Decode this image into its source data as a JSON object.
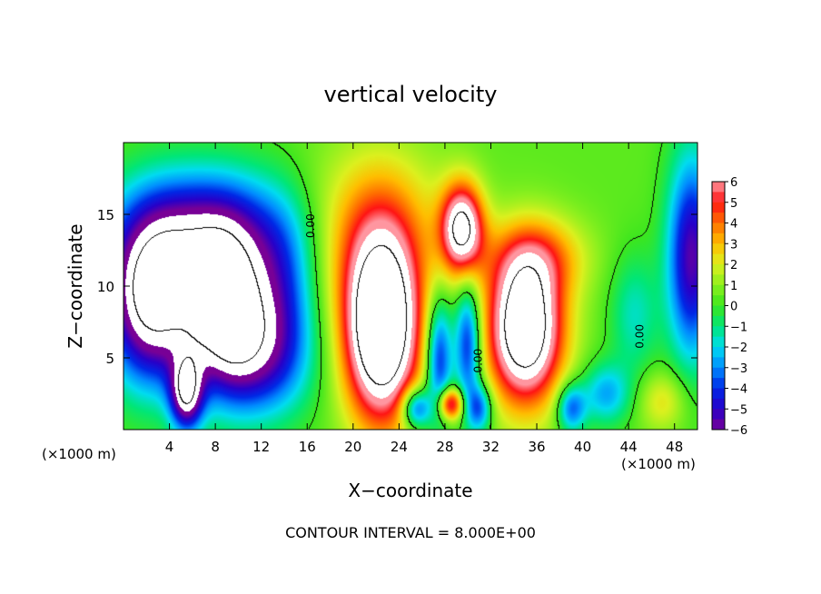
{
  "chart_data": {
    "type": "heatmap",
    "title": "vertical velocity",
    "xlabel": "X−coordinate",
    "ylabel": "Z−coordinate",
    "x_unit_left": "(×1000 m)",
    "x_unit_right": "(×1000 m)",
    "footer": "CONTOUR INTERVAL = 8.000E+00",
    "xlim": [
      0,
      50
    ],
    "ylim": [
      0,
      20
    ],
    "xticks": [
      4,
      8,
      12,
      16,
      20,
      24,
      28,
      32,
      36,
      40,
      44,
      48
    ],
    "yticks": [
      5,
      10,
      15
    ],
    "colorbar": {
      "range": [
        -6,
        6
      ],
      "ticks": [
        "6",
        "5",
        "4",
        "3",
        "2",
        "1",
        "0",
        "−1",
        "−2",
        "−3",
        "−4",
        "−5",
        "−6"
      ],
      "values": [
        6,
        5,
        4,
        3,
        2,
        1,
        0,
        -1,
        -2,
        -3,
        -4,
        -5,
        -6
      ]
    },
    "contour_labels": [
      {
        "text": "0.00",
        "x": 16.6,
        "z": 14.2
      },
      {
        "text": "0.00",
        "x": 31.2,
        "z": 4.8
      },
      {
        "text": "0.00",
        "x": 45.3,
        "z": 6.5
      }
    ],
    "features": [
      {
        "x": 2.5,
        "z": 9.0,
        "sx": 2.8,
        "sz": 4.0,
        "amp": -9
      },
      {
        "x": 9.0,
        "z": 8.5,
        "sx": 2.5,
        "sz": 3.8,
        "amp": -9
      },
      {
        "x": 7.0,
        "z": 14.0,
        "sx": 5.0,
        "sz": 3.0,
        "amp": -5
      },
      {
        "x": 5.5,
        "z": 2.5,
        "sx": 1.0,
        "sz": 1.8,
        "amp": -7
      },
      {
        "x": 12.0,
        "z": 5.0,
        "sx": 3.0,
        "sz": 3.0,
        "amp": -4
      },
      {
        "x": 14.0,
        "z": 10.0,
        "sx": 2.0,
        "sz": 4.0,
        "amp": -3
      },
      {
        "x": 22.5,
        "z": 7.0,
        "sx": 2.3,
        "sz": 4.5,
        "amp": 11
      },
      {
        "x": 29.5,
        "z": 14.0,
        "sx": 1.3,
        "sz": 2.2,
        "amp": 8
      },
      {
        "x": 35.0,
        "z": 7.0,
        "sx": 2.3,
        "sz": 3.6,
        "amp": 10
      },
      {
        "x": 27.5,
        "z": 5.0,
        "sx": 0.8,
        "sz": 3.0,
        "amp": -5
      },
      {
        "x": 30.0,
        "z": 6.0,
        "sx": 0.8,
        "sz": 3.0,
        "amp": -5
      },
      {
        "x": 25.5,
        "z": 1.5,
        "sx": 0.9,
        "sz": 1.0,
        "amp": -5
      },
      {
        "x": 31.0,
        "z": 1.5,
        "sx": 0.8,
        "sz": 1.2,
        "amp": -4
      },
      {
        "x": 39.0,
        "z": 1.5,
        "sx": 0.9,
        "sz": 1.2,
        "amp": -4
      },
      {
        "x": 28.5,
        "z": 1.8,
        "sx": 0.8,
        "sz": 0.8,
        "amp": 6
      },
      {
        "x": 42.0,
        "z": 2.5,
        "sx": 1.5,
        "sz": 1.5,
        "amp": -3
      },
      {
        "x": 44.5,
        "z": 8.0,
        "sx": 1.5,
        "sz": 3.0,
        "amp": -2
      },
      {
        "x": 49.5,
        "z": 12.0,
        "sx": 1.5,
        "sz": 5.0,
        "amp": -6
      },
      {
        "x": 36.0,
        "z": 12.0,
        "sx": 3.0,
        "sz": 2.0,
        "amp": 3
      },
      {
        "x": 22.0,
        "z": 14.0,
        "sx": 4.0,
        "sz": 4.0,
        "amp": 3
      },
      {
        "x": 47.0,
        "z": 2.0,
        "sx": 1.5,
        "sz": 1.5,
        "amp": 2
      }
    ]
  }
}
